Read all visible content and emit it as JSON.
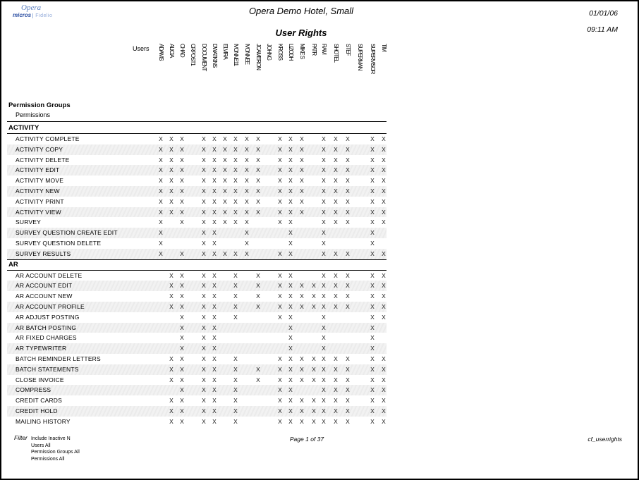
{
  "report": {
    "hotel_name": "Opera Demo Hotel, Small",
    "title": "User Rights",
    "date": "01/01/06",
    "time": "09:11 AM",
    "logo": {
      "product": "Opera",
      "company": "micros",
      "brand": "Fidelio"
    }
  },
  "matrix": {
    "users_label": "Users",
    "group_header": "Permission Groups",
    "sub_header": "Permissions",
    "mark_symbol": "X",
    "users": [
      "ADAMS",
      "ALICIA",
      "CHAD",
      "CRPOST1",
      "DOCUMENT",
      "DWATKINS",
      "ELVIRA",
      "IVONNE11",
      "IVONNEE",
      "JCAMERON",
      "JOHNG",
      "KROSS",
      "LIZODH",
      "MIKE S",
      "PATR",
      "RAM",
      "SHOTEL",
      "STEF",
      "SUPERMAN",
      "SUPERVISOR",
      "TIM"
    ],
    "sections": [
      {
        "name": "ACTIVITY",
        "rows": [
          {
            "label": "ACTIVITY COMPLETE",
            "marks": [
              1,
              1,
              1,
              0,
              1,
              1,
              1,
              1,
              1,
              1,
              0,
              1,
              1,
              1,
              0,
              1,
              1,
              1,
              0,
              1,
              1
            ]
          },
          {
            "label": "ACTIVITY COPY",
            "marks": [
              1,
              1,
              1,
              0,
              1,
              1,
              1,
              1,
              1,
              1,
              0,
              1,
              1,
              1,
              0,
              1,
              1,
              1,
              0,
              1,
              1
            ]
          },
          {
            "label": "ACTIVITY DELETE",
            "marks": [
              1,
              1,
              1,
              0,
              1,
              1,
              1,
              1,
              1,
              1,
              0,
              1,
              1,
              1,
              0,
              1,
              1,
              1,
              0,
              1,
              1
            ]
          },
          {
            "label": "ACTIVITY EDIT",
            "marks": [
              1,
              1,
              1,
              0,
              1,
              1,
              1,
              1,
              1,
              1,
              0,
              1,
              1,
              1,
              0,
              1,
              1,
              1,
              0,
              1,
              1
            ]
          },
          {
            "label": "ACTIVITY MOVE",
            "marks": [
              1,
              1,
              1,
              0,
              1,
              1,
              1,
              1,
              1,
              1,
              0,
              1,
              1,
              1,
              0,
              1,
              1,
              1,
              0,
              1,
              1
            ]
          },
          {
            "label": "ACTIVITY NEW",
            "marks": [
              1,
              1,
              1,
              0,
              1,
              1,
              1,
              1,
              1,
              1,
              0,
              1,
              1,
              1,
              0,
              1,
              1,
              1,
              0,
              1,
              1
            ]
          },
          {
            "label": "ACTIVITY PRINT",
            "marks": [
              1,
              1,
              1,
              0,
              1,
              1,
              1,
              1,
              1,
              1,
              0,
              1,
              1,
              1,
              0,
              1,
              1,
              1,
              0,
              1,
              1
            ]
          },
          {
            "label": "ACTIVITY VIEW",
            "marks": [
              1,
              1,
              1,
              0,
              1,
              1,
              1,
              1,
              1,
              1,
              0,
              1,
              1,
              1,
              0,
              1,
              1,
              1,
              0,
              1,
              1
            ]
          },
          {
            "label": "SURVEY",
            "marks": [
              1,
              0,
              1,
              0,
              1,
              1,
              1,
              1,
              1,
              0,
              0,
              1,
              1,
              0,
              0,
              1,
              1,
              1,
              0,
              1,
              1
            ]
          },
          {
            "label": "SURVEY QUESTION CREATE EDIT",
            "marks": [
              1,
              0,
              0,
              0,
              1,
              1,
              0,
              0,
              1,
              0,
              0,
              0,
              1,
              0,
              0,
              1,
              0,
              0,
              0,
              1,
              0
            ]
          },
          {
            "label": "SURVEY QUESTION DELETE",
            "marks": [
              1,
              0,
              0,
              0,
              1,
              1,
              0,
              0,
              1,
              0,
              0,
              0,
              1,
              0,
              0,
              1,
              0,
              0,
              0,
              1,
              0
            ]
          },
          {
            "label": "SURVEY RESULTS",
            "marks": [
              1,
              0,
              1,
              0,
              1,
              1,
              1,
              1,
              1,
              0,
              0,
              1,
              1,
              0,
              0,
              1,
              1,
              1,
              0,
              1,
              1
            ]
          }
        ]
      },
      {
        "name": "AR",
        "rows": [
          {
            "label": "AR ACCOUNT DELETE",
            "marks": [
              0,
              1,
              1,
              0,
              1,
              1,
              0,
              1,
              0,
              1,
              0,
              1,
              1,
              0,
              0,
              1,
              1,
              1,
              0,
              1,
              1
            ]
          },
          {
            "label": "AR ACCOUNT EDIT",
            "marks": [
              0,
              1,
              1,
              0,
              1,
              1,
              0,
              1,
              0,
              1,
              0,
              1,
              1,
              1,
              1,
              1,
              1,
              1,
              0,
              1,
              1
            ]
          },
          {
            "label": "AR ACCOUNT NEW",
            "marks": [
              0,
              1,
              1,
              0,
              1,
              1,
              0,
              1,
              0,
              1,
              0,
              1,
              1,
              1,
              1,
              1,
              1,
              1,
              0,
              1,
              1
            ]
          },
          {
            "label": "AR ACCOUNT PROFILE",
            "marks": [
              0,
              1,
              1,
              0,
              1,
              1,
              0,
              1,
              0,
              1,
              0,
              1,
              1,
              1,
              1,
              1,
              1,
              1,
              0,
              1,
              1
            ]
          },
          {
            "label": "AR ADJUST POSTING",
            "marks": [
              0,
              0,
              1,
              0,
              1,
              1,
              0,
              1,
              0,
              0,
              0,
              1,
              1,
              0,
              0,
              1,
              0,
              0,
              0,
              1,
              1
            ]
          },
          {
            "label": "AR BATCH POSTING",
            "marks": [
              0,
              0,
              1,
              0,
              1,
              1,
              0,
              0,
              0,
              0,
              0,
              0,
              1,
              0,
              0,
              1,
              0,
              0,
              0,
              1,
              0
            ]
          },
          {
            "label": "AR FIXED CHARGES",
            "marks": [
              0,
              0,
              1,
              0,
              1,
              1,
              0,
              0,
              0,
              0,
              0,
              0,
              1,
              0,
              0,
              1,
              0,
              0,
              0,
              1,
              0
            ]
          },
          {
            "label": "AR TYPEWRITER",
            "marks": [
              0,
              0,
              1,
              0,
              1,
              1,
              0,
              0,
              0,
              0,
              0,
              0,
              1,
              0,
              0,
              1,
              0,
              0,
              0,
              1,
              0
            ]
          },
          {
            "label": "BATCH REMINDER LETTERS",
            "marks": [
              0,
              1,
              1,
              0,
              1,
              1,
              0,
              1,
              0,
              0,
              0,
              1,
              1,
              1,
              1,
              1,
              1,
              1,
              0,
              1,
              1
            ]
          },
          {
            "label": "BATCH STATEMENTS",
            "marks": [
              0,
              1,
              1,
              0,
              1,
              1,
              0,
              1,
              0,
              1,
              0,
              1,
              1,
              1,
              1,
              1,
              1,
              1,
              0,
              1,
              1
            ]
          },
          {
            "label": "CLOSE INVOICE",
            "marks": [
              0,
              1,
              1,
              0,
              1,
              1,
              0,
              1,
              0,
              1,
              0,
              1,
              1,
              1,
              1,
              1,
              1,
              1,
              0,
              1,
              1
            ]
          },
          {
            "label": "COMPRESS",
            "marks": [
              0,
              0,
              1,
              0,
              1,
              1,
              0,
              1,
              0,
              0,
              0,
              1,
              1,
              0,
              0,
              1,
              1,
              1,
              0,
              1,
              1
            ]
          },
          {
            "label": "CREDIT CARDS",
            "marks": [
              0,
              1,
              1,
              0,
              1,
              1,
              0,
              1,
              0,
              0,
              0,
              1,
              1,
              1,
              1,
              1,
              1,
              1,
              0,
              1,
              1
            ]
          },
          {
            "label": "CREDIT HOLD",
            "marks": [
              0,
              1,
              1,
              0,
              1,
              1,
              0,
              1,
              0,
              0,
              0,
              1,
              1,
              1,
              1,
              1,
              1,
              1,
              0,
              1,
              1
            ]
          },
          {
            "label": "MAILING HISTORY",
            "marks": [
              0,
              1,
              1,
              0,
              1,
              1,
              0,
              1,
              0,
              0,
              0,
              1,
              1,
              1,
              1,
              1,
              1,
              1,
              0,
              1,
              1
            ]
          }
        ]
      }
    ]
  },
  "footer": {
    "filter_label": "Filter",
    "filters": [
      "Include Inactive N",
      "Users All",
      "Permission Groups All",
      "Permissions All"
    ],
    "page": "Page 1 of 37",
    "report_id": "cf_userrights"
  }
}
